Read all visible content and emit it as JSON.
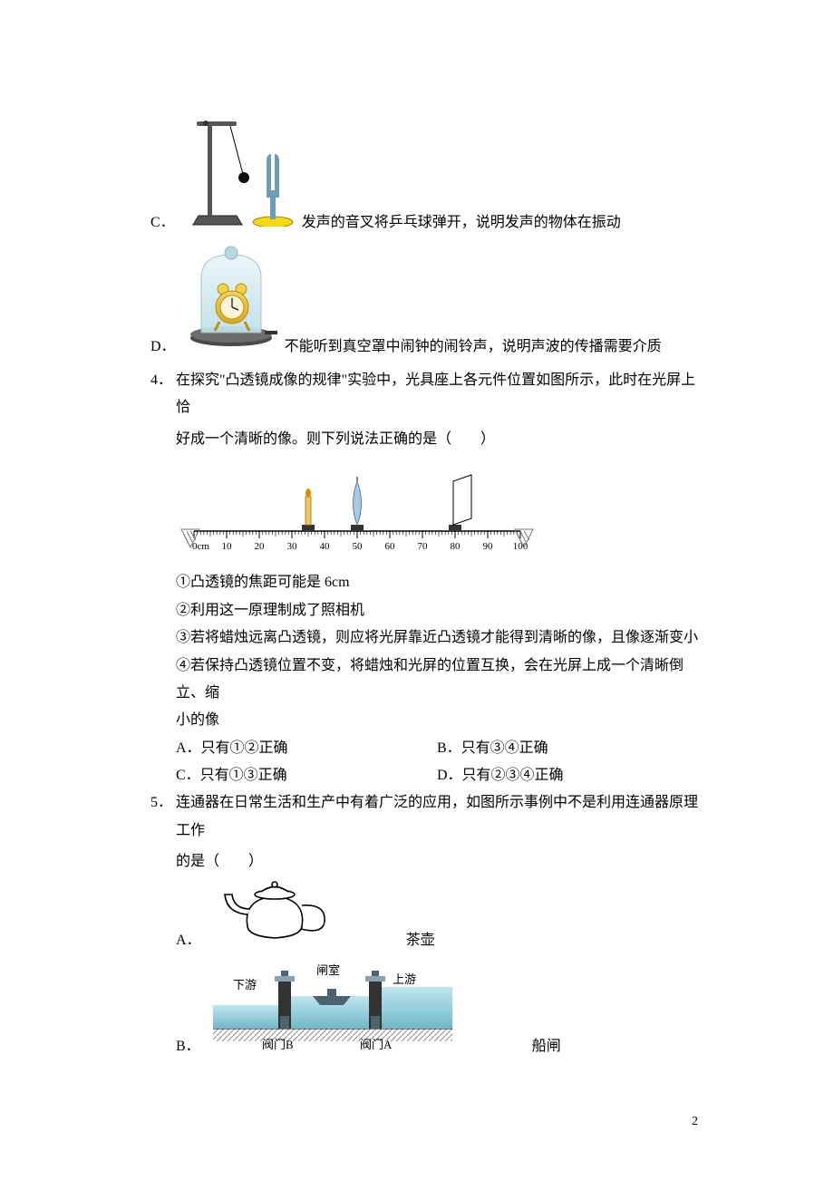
{
  "page_number": "2",
  "option_c_tuning_fork": {
    "label": "C．",
    "text": "发声的音叉将乒乓球弹开，说明发声的物体在振动",
    "colors": {
      "base": "#f6d913",
      "base_edge": "#a08000",
      "stand_fill": "#555555",
      "fork": "#6d9cb5",
      "ball": "#111111"
    }
  },
  "option_d_belljar": {
    "label": "D．",
    "text": "不能听到真空罩中闹钟的闹铃声，说明声波的传播需要介质",
    "colors": {
      "glass_top": "#eaf5f8",
      "glass_bottom": "#bfe1e9",
      "base_front": "#4a4a4a",
      "base_top": "#6d6d6d",
      "knob": "#b8d9e0",
      "clock_body": "#e9c02f",
      "clock_face": "#fbf4d9",
      "bell": "#f0d24a",
      "valve": "#333333"
    }
  },
  "q4": {
    "num": "4．",
    "stem1": "在探究\"凸透镜成像的规律\"实验中，光具座上各元件位置如图所示，此时在光屏上恰",
    "stem2": "好成一个清晰的像。则下列说法正确的是（　　）",
    "bench": {
      "ticks": [
        "0cm",
        "10",
        "20",
        "30",
        "40",
        "50",
        "60",
        "70",
        "80",
        "90",
        "100"
      ],
      "candle_x_cm": 35,
      "lens_x_cm": 50,
      "screen_x_cm": 80,
      "colors": {
        "rail": "#000000",
        "end_hatch": "#777777",
        "slider": "#333333",
        "candle": "#efc864",
        "flame": "#e68a00",
        "lens": "#a6c9e6",
        "screen": "#ffffff"
      }
    },
    "items": {
      "s1": "①凸透镜的焦距可能是 6cm",
      "s2": "②利用这一原理制成了照相机",
      "s3": "③若将蜡烛远离凸透镜，则应将光屏靠近凸透镜才能得到清晰的像，且像逐渐变小",
      "s4a": "④若保持凸透镜位置不变，将蜡烛和光屏的位置互换，会在光屏上成一个清晰倒立、缩",
      "s4b": "小的像"
    },
    "choices": {
      "A": "A．只有①②正确",
      "B": "B．只有③④正确",
      "C": "C．只有①③正确",
      "D": "D．只有②③④正确"
    }
  },
  "q5": {
    "num": "5．",
    "stem1": "连通器在日常生活和生产中有着广泛的应用，如图所示事例中不是利用连通器原理工作",
    "stem2": "的是（　　）",
    "opt_a": {
      "label": "A．",
      "caption": "茶壶",
      "colors": {
        "outline": "#000000",
        "fill": "#ffffff"
      }
    },
    "opt_b": {
      "label": "B．",
      "caption": "船闸",
      "labels": {
        "downstream": "下游",
        "upstream": "上游",
        "chamber": "闸室",
        "valve_a": "阀门A",
        "valve_b": "阀门B"
      },
      "colors": {
        "sky": "#ffffff",
        "wall": "#333333",
        "wall_hatch": "#9a9a9a",
        "water_top": "#bfe6ef",
        "water_bottom": "#6fb7c9",
        "gate_light": "#88a1b1",
        "gate_dark": "#4c6370",
        "ground_hatch": "#8a8a8a",
        "text": "#000000"
      }
    }
  }
}
